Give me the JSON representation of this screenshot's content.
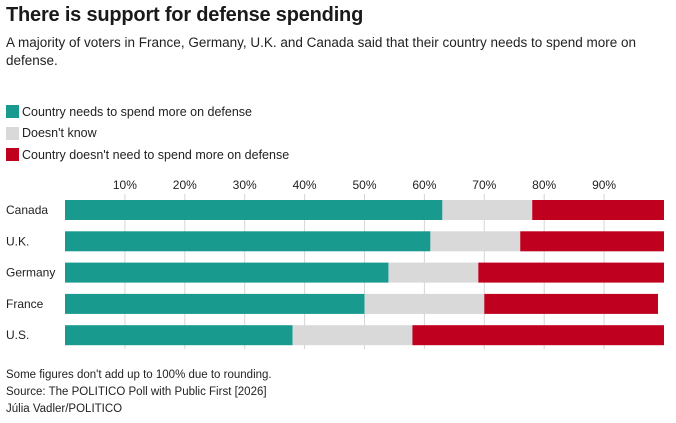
{
  "header": {
    "title": "There is support for defense spending",
    "subtitle": "A majority of voters in France, Germany, U.K. and Canada said that their country needs to spend more on defense."
  },
  "legend": [
    {
      "label": "Country needs to spend more on defense",
      "color": "#189a8e"
    },
    {
      "label": "Doesn't know",
      "color": "#d9d9d9"
    },
    {
      "label": "Country doesn't need to spend more on defense",
      "color": "#c0001f"
    }
  ],
  "chart_data": {
    "type": "bar",
    "orientation": "horizontal",
    "stacked": true,
    "title": "There is support for defense spending",
    "categories": [
      "Canada",
      "U.K.",
      "Germany",
      "France",
      "U.S."
    ],
    "series": [
      {
        "name": "Country needs to spend more on defense",
        "color": "#189a8e",
        "values": [
          63,
          61,
          54,
          50,
          38
        ]
      },
      {
        "name": "Doesn't know",
        "color": "#d9d9d9",
        "values": [
          15,
          15,
          15,
          20,
          20
        ]
      },
      {
        "name": "Country doesn't need to spend more on defense",
        "color": "#c0001f",
        "values": [
          22,
          24,
          31,
          29,
          42
        ]
      }
    ],
    "x_ticks": [
      "10%",
      "20%",
      "30%",
      "40%",
      "50%",
      "60%",
      "70%",
      "80%",
      "90%"
    ],
    "xlim": [
      0,
      100
    ],
    "xlabel": "",
    "ylabel": "",
    "grid": true,
    "legend_position": "top-left"
  },
  "footer": {
    "note": "Some figures don't add up to 100% due to rounding.",
    "source": "Source: The POLITICO Poll with Public First [2026]",
    "credit": "Júlia Vadler/POLITICO"
  }
}
